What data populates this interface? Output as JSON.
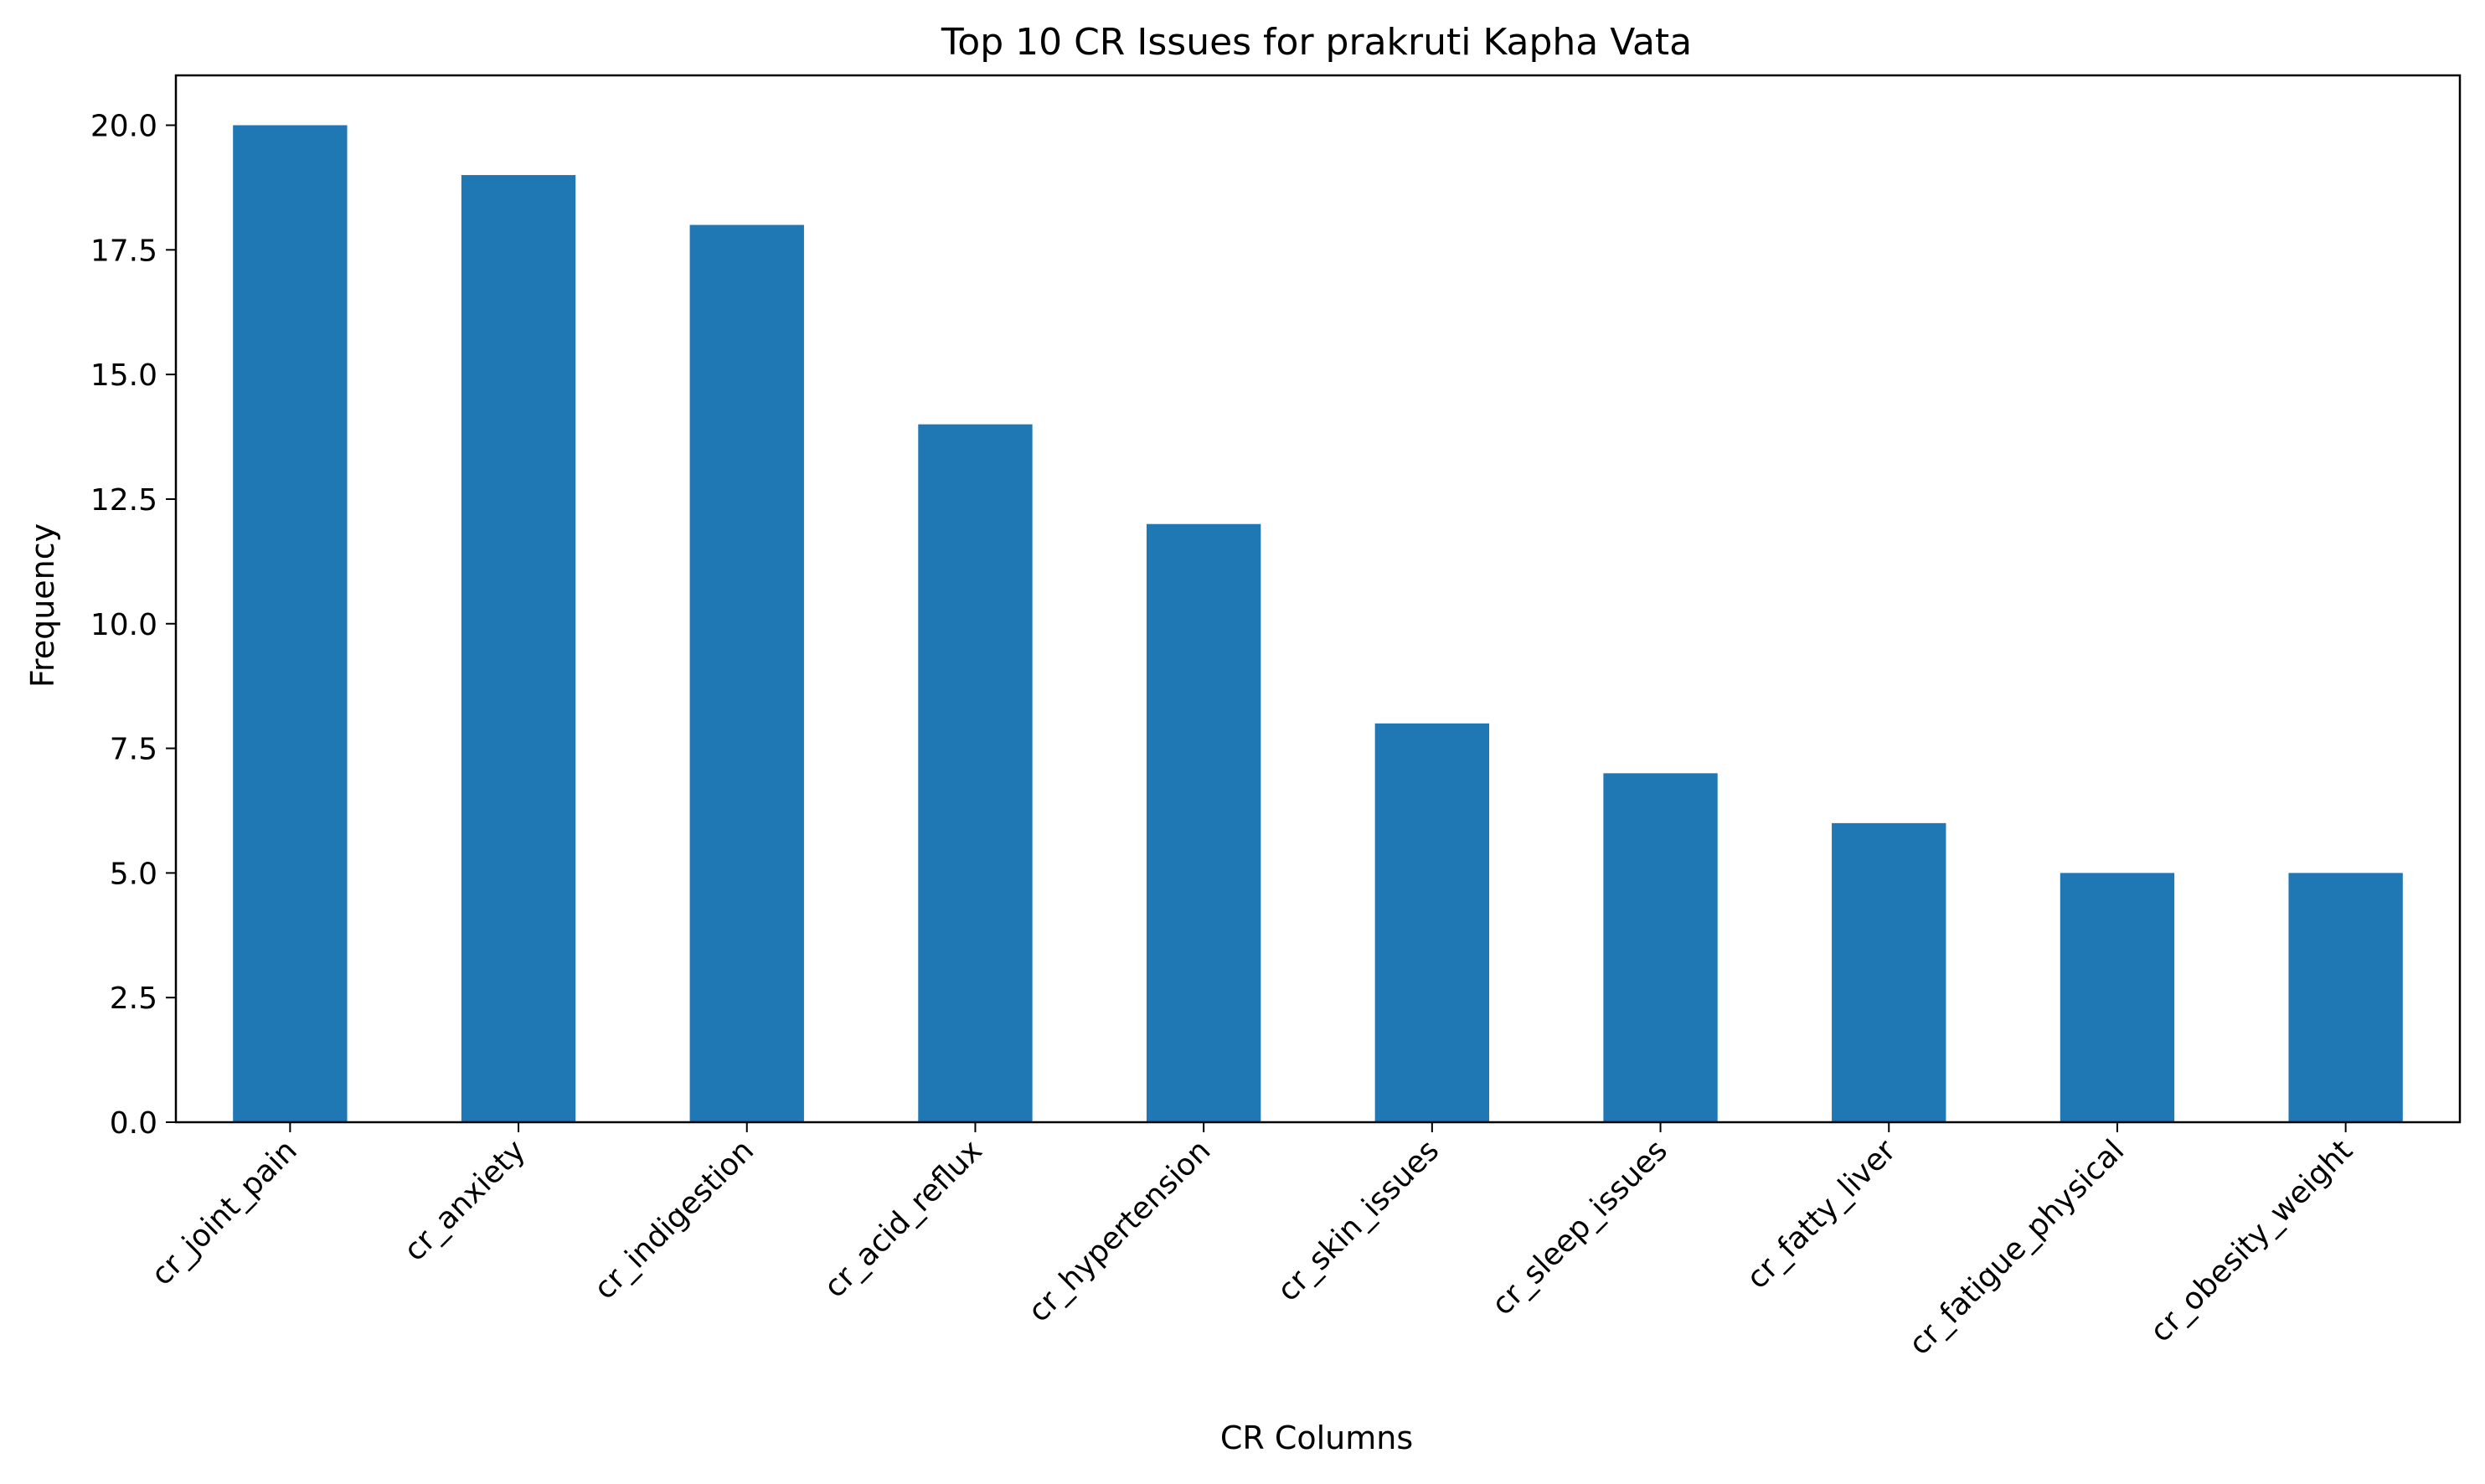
{
  "chart_data": {
    "type": "bar",
    "title": "Top 10 CR Issues for prakruti Kapha Vata",
    "xlabel": "CR Columns",
    "ylabel": "Frequency",
    "categories": [
      "cr_joint_pain",
      "cr_anxiety",
      "cr_indigestion",
      "cr_acid_reflux",
      "cr_hypertension",
      "cr_skin_issues",
      "cr_sleep_issues",
      "cr_fatty_liver",
      "cr_fatigue_physical",
      "cr_obesity_weight"
    ],
    "values": [
      20,
      19,
      18,
      14,
      12,
      8,
      7,
      6,
      5,
      5
    ],
    "ylim": [
      0,
      21
    ],
    "yticks": [
      "0.0",
      "2.5",
      "5.0",
      "7.5",
      "10.0",
      "12.5",
      "15.0",
      "17.5",
      "20.0"
    ],
    "ytick_values": [
      0,
      2.5,
      5,
      7.5,
      10,
      12.5,
      15,
      17.5,
      20
    ],
    "grid": false,
    "legend": "none",
    "bar_color": "#1f77b4"
  }
}
